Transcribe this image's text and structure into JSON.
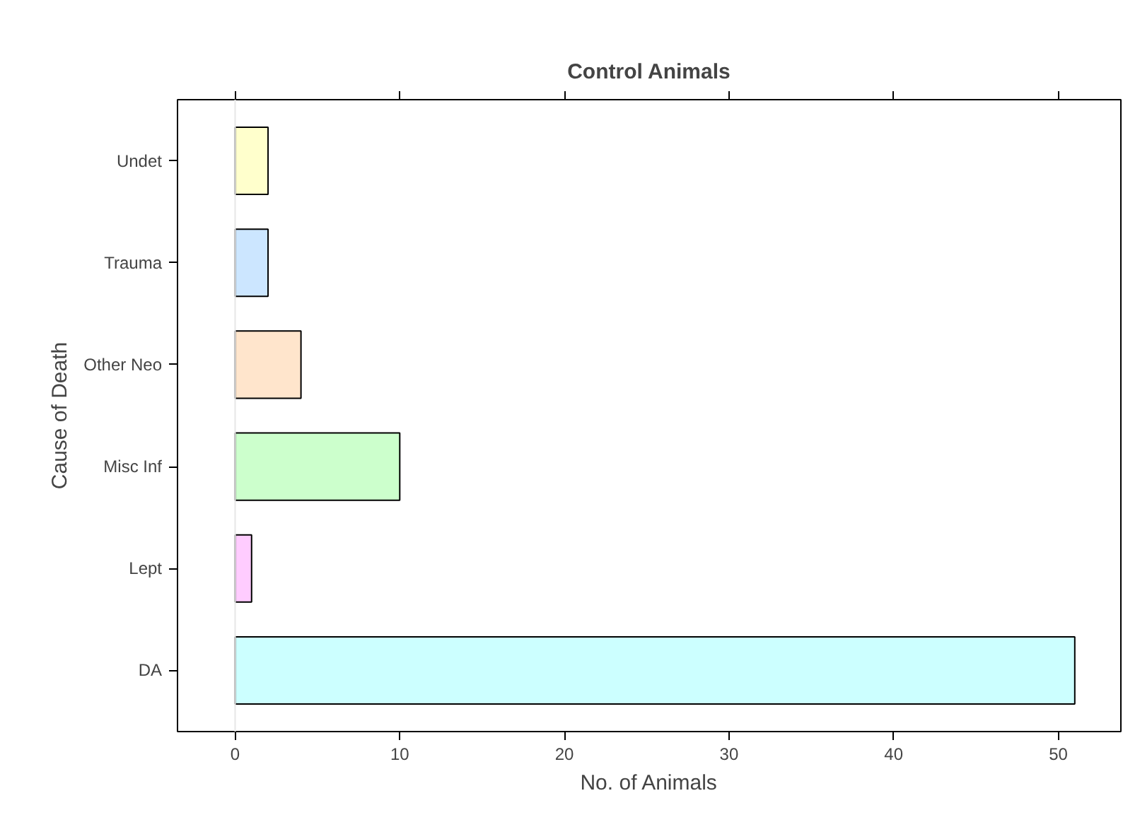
{
  "chart_data": {
    "type": "bar",
    "orientation": "horizontal",
    "title": "Control Animals",
    "xlabel": "No. of Animals",
    "ylabel": "Cause of Death",
    "categories": [
      "Undet",
      "Trauma",
      "Other Neo",
      "Misc Inf",
      "Lept",
      "DA"
    ],
    "values": [
      2,
      2,
      4,
      10,
      1,
      51
    ],
    "colors": [
      "#ffffcc",
      "#cce6ff",
      "#ffe5cc",
      "#ccffcc",
      "#ffccff",
      "#ccffff"
    ],
    "xlim": [
      -3.5,
      53.8
    ],
    "xticks": [
      0,
      10,
      20,
      30,
      40,
      50
    ],
    "grid": false,
    "ref_lines": [
      {
        "axis": "x",
        "value": 0,
        "color": "#e6e6e6"
      }
    ]
  }
}
